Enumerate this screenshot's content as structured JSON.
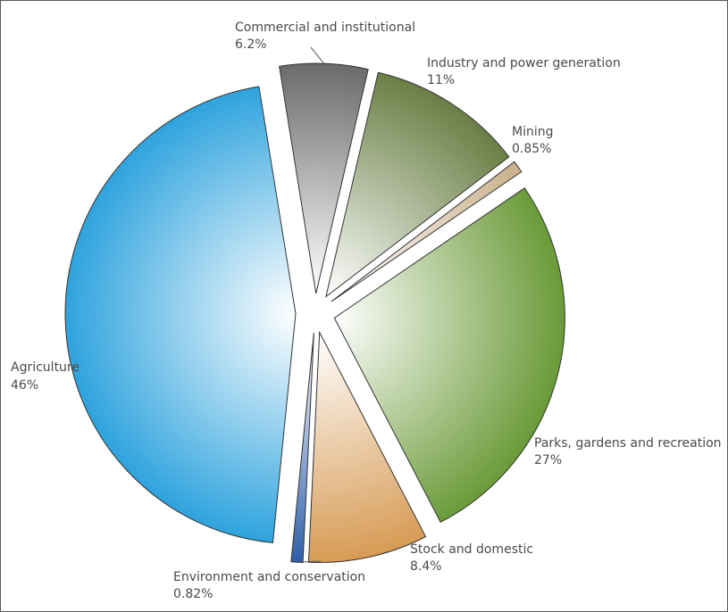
{
  "chart_data": {
    "type": "pie",
    "title": "",
    "exploded": true,
    "slices": [
      {
        "label": "Commercial and institutional",
        "value": 6.2,
        "pct_label": "6.2%",
        "color": "#6b6b6b"
      },
      {
        "label": "Industry and power generation",
        "value": 11,
        "pct_label": "11%",
        "color": "#6a7f45"
      },
      {
        "label": "Mining",
        "value": 0.85,
        "pct_label": "0.85%",
        "color": "#c9b08a"
      },
      {
        "label": "Parks, gardens and recreation",
        "value": 27,
        "pct_label": "27%",
        "color": "#6a9a38"
      },
      {
        "label": "Stock and domestic",
        "value": 8.4,
        "pct_label": "8.4%",
        "color": "#d79b55"
      },
      {
        "label": "Environment and conservation",
        "value": 0.82,
        "pct_label": "0.82%",
        "color": "#2f5fa8"
      },
      {
        "label": "Agriculture",
        "value": 46,
        "pct_label": "46%",
        "color": "#2ea3de"
      }
    ]
  }
}
